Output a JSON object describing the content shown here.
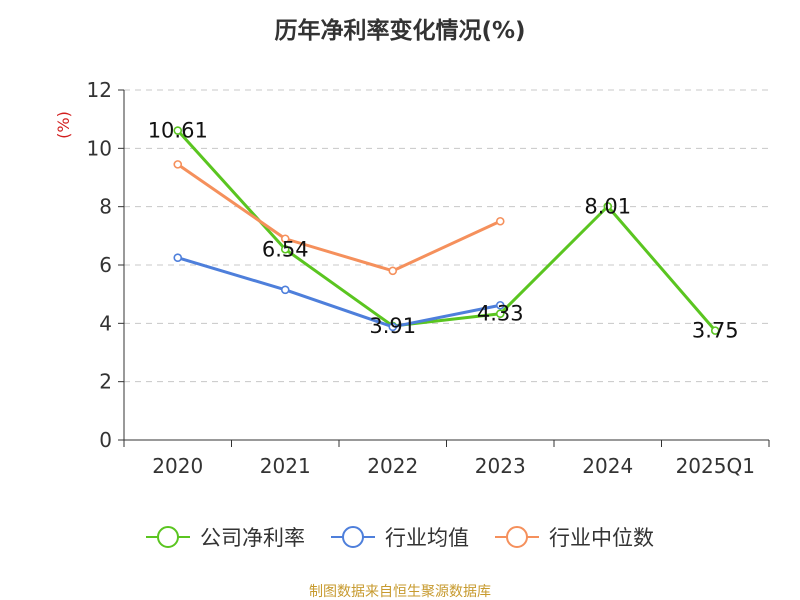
{
  "chart_data": {
    "type": "line",
    "title": "历年净利率变化情况(%)",
    "ylabel": "(%)",
    "xlabel": "",
    "categories": [
      "2020",
      "2021",
      "2022",
      "2023",
      "2024",
      "2025Q1"
    ],
    "ylim": [
      0,
      12
    ],
    "yticks": [
      0,
      2,
      4,
      6,
      8,
      10,
      12
    ],
    "grid": true,
    "legend_position": "bottom",
    "series": [
      {
        "name": "公司净利率",
        "color": "#5ac520",
        "values": [
          10.61,
          6.54,
          3.91,
          4.33,
          8.01,
          3.75
        ],
        "labels": [
          "10.61",
          "6.54",
          "3.91",
          "4.33",
          "8.01",
          "3.75"
        ]
      },
      {
        "name": "行业均值",
        "color": "#4e7fdb",
        "values": [
          6.25,
          5.15,
          3.88,
          4.62,
          null,
          null
        ]
      },
      {
        "name": "行业中位数",
        "color": "#f5905c",
        "values": [
          9.45,
          6.9,
          5.8,
          7.5,
          null,
          null
        ]
      }
    ],
    "source": "制图数据来自恒生聚源数据库"
  }
}
